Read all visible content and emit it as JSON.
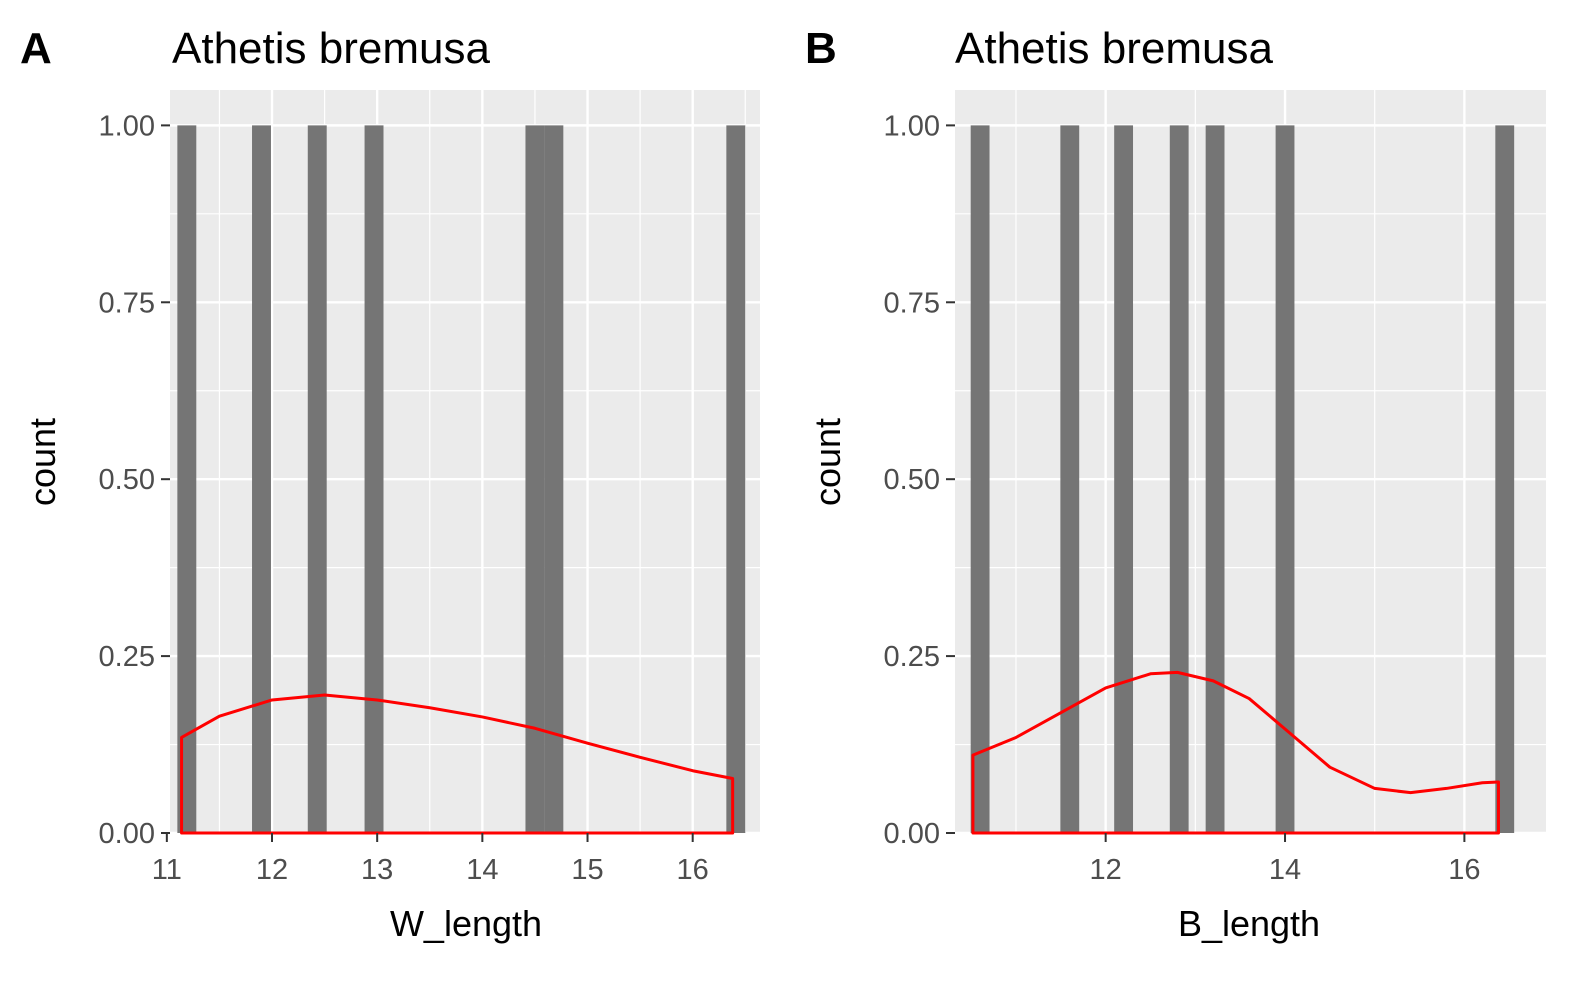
{
  "chart_data": [
    {
      "type": "bar",
      "panel_label": "A",
      "title": "Athetis bremusa",
      "xlabel": "W_length",
      "ylabel": "count",
      "xlim": [
        11.03,
        16.64
      ],
      "ylim": [
        0,
        1.05
      ],
      "x_ticks": [
        11,
        12,
        13,
        14,
        15,
        16
      ],
      "x_tick_labels": [
        "11",
        "12",
        "13",
        "14",
        "15",
        "16"
      ],
      "y_ticks": [
        0,
        0.25,
        0.5,
        0.75,
        1.0
      ],
      "y_tick_labels": [
        "0.00",
        "0.25",
        "0.50",
        "0.75",
        "1.00"
      ],
      "bar_width": 0.18,
      "bars": [
        {
          "x": 11.19,
          "count": 1
        },
        {
          "x": 11.9,
          "count": 1
        },
        {
          "x": 12.43,
          "count": 1
        },
        {
          "x": 12.97,
          "count": 1
        },
        {
          "x": 14.5,
          "count": 1
        },
        {
          "x": 14.68,
          "count": 1
        },
        {
          "x": 16.41,
          "count": 1
        }
      ],
      "bar_color": "#757575",
      "grid": true,
      "density": {
        "color": "#ff0000",
        "x": [
          11.14,
          11.5,
          12.0,
          12.5,
          13.0,
          13.5,
          14.0,
          14.5,
          15.0,
          15.5,
          16.0,
          16.38
        ],
        "y": [
          0.135,
          0.165,
          0.188,
          0.195,
          0.188,
          0.177,
          0.164,
          0.148,
          0.127,
          0.107,
          0.088,
          0.077
        ]
      }
    },
    {
      "type": "bar",
      "panel_label": "B",
      "title": "Athetis bremusa",
      "xlabel": "B_length",
      "ylabel": "count",
      "xlim": [
        10.32,
        16.91
      ],
      "ylim": [
        0,
        1.05
      ],
      "x_ticks": [
        12,
        14,
        16
      ],
      "x_tick_labels": [
        "12",
        "14",
        "16"
      ],
      "y_ticks": [
        0,
        0.25,
        0.5,
        0.75,
        1.0
      ],
      "y_tick_labels": [
        "0.00",
        "0.25",
        "0.50",
        "0.75",
        "1.00"
      ],
      "bar_width": 0.21,
      "bars": [
        {
          "x": 10.6,
          "count": 1
        },
        {
          "x": 11.6,
          "count": 1
        },
        {
          "x": 12.2,
          "count": 1
        },
        {
          "x": 12.82,
          "count": 1
        },
        {
          "x": 13.22,
          "count": 1
        },
        {
          "x": 14.0,
          "count": 1
        },
        {
          "x": 16.45,
          "count": 1
        }
      ],
      "bar_color": "#757575",
      "grid": true,
      "density": {
        "color": "#ff0000",
        "x": [
          10.52,
          11.0,
          11.5,
          12.0,
          12.5,
          12.8,
          13.2,
          13.6,
          14.0,
          14.5,
          15.0,
          15.4,
          15.8,
          16.2,
          16.38
        ],
        "y": [
          0.11,
          0.135,
          0.17,
          0.205,
          0.225,
          0.227,
          0.215,
          0.19,
          0.147,
          0.093,
          0.063,
          0.057,
          0.063,
          0.071,
          0.072
        ]
      }
    }
  ]
}
